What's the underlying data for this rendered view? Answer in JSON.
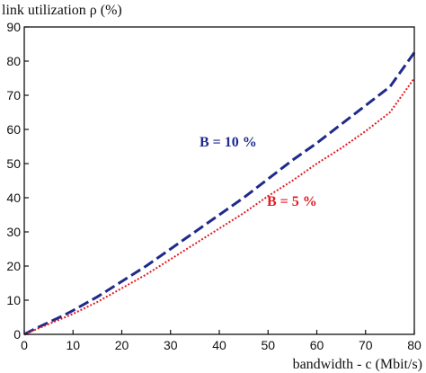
{
  "chart_data": {
    "type": "line",
    "title": "",
    "ylabel": "link utilization  ρ (%)",
    "xlabel": "bandwidth - c (Mbit/s)",
    "xlim": [
      0,
      80
    ],
    "ylim": [
      0,
      90
    ],
    "xticks": [
      "0",
      "10",
      "20",
      "30",
      "40",
      "50",
      "60",
      "70",
      "80"
    ],
    "yticks": [
      "0",
      "10",
      "20",
      "30",
      "40",
      "50",
      "60",
      "70",
      "80",
      "90"
    ],
    "grid": false,
    "series": [
      {
        "name": "B = 10 %",
        "color": "#1f2a8c",
        "style": "dashed",
        "x": [
          0,
          2,
          5,
          8,
          10,
          15,
          20,
          25,
          30,
          35,
          40,
          45,
          50,
          55,
          60,
          65,
          70,
          75,
          80
        ],
        "y": [
          0,
          1.5,
          3.5,
          5.5,
          7.0,
          11.0,
          15.5,
          20.0,
          25.0,
          30.0,
          35.0,
          40.0,
          45.5,
          51.0,
          56.0,
          61.5,
          67.0,
          72.5,
          82.5
        ]
      },
      {
        "name": "B = 5 %",
        "color": "#e01b24",
        "style": "dotted",
        "x": [
          0,
          2,
          5,
          8,
          10,
          15,
          20,
          25,
          30,
          35,
          40,
          45,
          50,
          55,
          60,
          65,
          70,
          75,
          80
        ],
        "y": [
          0,
          1.2,
          3.0,
          4.8,
          6.0,
          9.5,
          13.5,
          17.5,
          22.0,
          26.5,
          31.0,
          35.5,
          40.5,
          45.0,
          50.0,
          54.5,
          59.5,
          65.0,
          75.0
        ]
      }
    ]
  }
}
